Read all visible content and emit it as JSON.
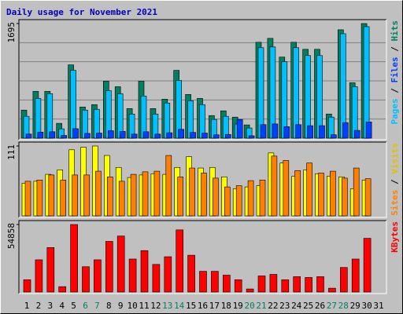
{
  "title": "Daily usage for November 2021",
  "categories": [
    "1",
    "2",
    "3",
    "4",
    "5",
    "6",
    "7",
    "8",
    "9",
    "10",
    "11",
    "12",
    "13",
    "14",
    "15",
    "16",
    "17",
    "18",
    "19",
    "20",
    "21",
    "22",
    "23",
    "24",
    "25",
    "26",
    "27",
    "28",
    "29",
    "30",
    "31"
  ],
  "highlight_indices": [
    5,
    6,
    12,
    13,
    19,
    20,
    26,
    27
  ],
  "highlight_color": "#008060",
  "label_color": "#000000",
  "legend_separator": " / ",
  "chart_data": [
    {
      "type": "bar",
      "ylim": [
        0,
        1695
      ],
      "yticks": [
        1695
      ],
      "series": [
        {
          "name": "Pages",
          "color": "#0040ff",
          "label_color": "#00c0ff",
          "values": [
            60,
            90,
            95,
            40,
            140,
            70,
            75,
            110,
            100,
            60,
            95,
            60,
            80,
            130,
            85,
            75,
            50,
            55,
            277,
            35,
            200,
            210,
            170,
            200,
            185,
            185,
            50,
            230,
            115,
            240,
            null
          ]
        },
        {
          "name": "Files",
          "color": "#00c0ff",
          "label_color": "#0040ff",
          "values": [
            323,
            588,
            657,
            138,
            1003,
            415,
            427,
            703,
            657,
            357,
            623,
            357,
            519,
            853,
            553,
            496,
            277,
            323,
            208,
            150,
            1338,
            1349,
            1130,
            1338,
            1222,
            1222,
            311,
            1545,
            761,
            1649,
            null
          ]
        },
        {
          "name": "Hits",
          "color": "#008060",
          "label_color": "#008060",
          "values": [
            415,
            692,
            692,
            219,
            1084,
            461,
            496,
            842,
            761,
            438,
            842,
            438,
            577,
            1003,
            646,
            588,
            334,
            404,
            311,
            196,
            1418,
            1476,
            1199,
            1418,
            1314,
            1314,
            357,
            1603,
            819,
            1695,
            null
          ]
        }
      ]
    },
    {
      "type": "bar",
      "ylim": [
        0,
        111
      ],
      "yticks": [
        111
      ],
      "series": [
        {
          "name": "Sites",
          "color": "#ff8000",
          "label_color": "#ff8000",
          "values": [
            55,
            57,
            65,
            57,
            65,
            65,
            71,
            62,
            55,
            66,
            70,
            71,
            96,
            62,
            76,
            68,
            60,
            46,
            48,
            56,
            57,
            95,
            88,
            72,
            84,
            68,
            71,
            60,
            76,
            59,
            null
          ]
        },
        {
          "name": "Visits",
          "color": "#ffff00",
          "label_color": "#e0c000",
          "values": [
            52,
            55,
            66,
            73,
            105,
            109,
            111,
            96,
            77,
            61,
            65,
            67,
            66,
            77,
            94,
            76,
            77,
            62,
            43,
            46,
            48,
            100,
            84,
            63,
            73,
            67,
            63,
            62,
            43,
            57,
            null
          ]
        }
      ]
    },
    {
      "type": "bar",
      "ylim": [
        0,
        54858
      ],
      "yticks": [
        54858
      ],
      "series": [
        {
          "name": "KBytes",
          "color": "#ff0000",
          "label_color": "#ff0000",
          "values": [
            9974,
            26183,
            36157,
            4364,
            54858,
            20572,
            26183,
            41144,
            45508,
            26806,
            33664,
            22443,
            28676,
            50495,
            29923,
            16832,
            16832,
            13715,
            9974,
            2494,
            13091,
            14338,
            9974,
            12468,
            11845,
            12468,
            3117,
            19949,
            26806,
            43638,
            null
          ]
        }
      ]
    }
  ]
}
